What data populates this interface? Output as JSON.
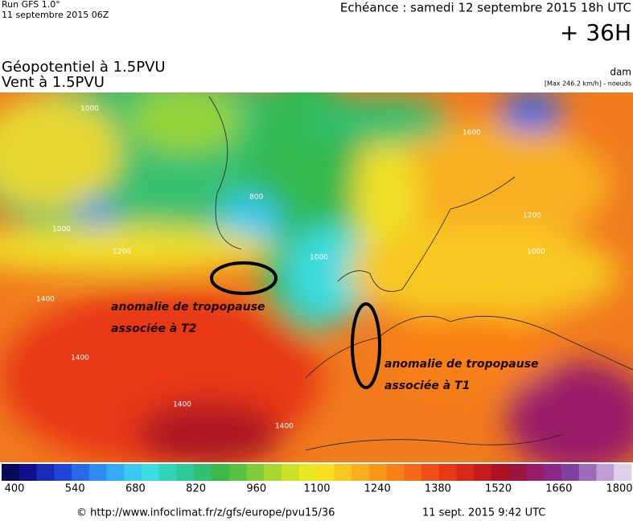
{
  "header": {
    "run": "Run GFS 1.0°",
    "run_date": "11 septembre 2015 06Z",
    "valid": "Echéance : samedi 12 septembre 2015 18h UTC",
    "lead": "+ 36H",
    "title_1": "Géopotentiel à 1.5PVU",
    "title_2": "Vent à 1.5PVU",
    "unit": "dam",
    "max_wind": "[Max 246.2 km/h] - noeuds"
  },
  "map": {
    "contour_labels": [
      "1000",
      "1000",
      "800",
      "1200",
      "1400",
      "1400",
      "1400",
      "1400",
      "1000",
      "1600",
      "1200",
      "1000"
    ],
    "annotations": [
      {
        "line_1": "anomalie de tropopause",
        "line_2": "associée à T2"
      },
      {
        "line_1": "anomalie de tropopause",
        "line_2": "associée à T1"
      }
    ]
  },
  "colorbar": {
    "ticks": [
      400,
      540,
      680,
      820,
      960,
      1100,
      1240,
      1380,
      1520,
      1660,
      1800
    ],
    "colors": [
      "#0a0a5a",
      "#10108a",
      "#1a2ab8",
      "#1e44d8",
      "#2a68e8",
      "#2e8cf0",
      "#32aaf4",
      "#38c8f0",
      "#3cdce0",
      "#30d4b8",
      "#2cc898",
      "#30c070",
      "#3cb848",
      "#58c040",
      "#80cc38",
      "#a8d830",
      "#cce028",
      "#e8e820",
      "#f8e020",
      "#f8c820",
      "#f8b020",
      "#f89818",
      "#f88018",
      "#f46818",
      "#f05018",
      "#e83818",
      "#d82818",
      "#c41c1c",
      "#ac1424",
      "#9c1440",
      "#981c68",
      "#8c2888",
      "#8040a0",
      "#9c6cb8",
      "#c0a0d4",
      "#e0d0ec"
    ]
  },
  "footer": {
    "url": "© http://www.infoclimat.fr/z/gfs/europe/pvu15/36",
    "timestamp": "11 sept. 2015  9:42 UTC"
  }
}
